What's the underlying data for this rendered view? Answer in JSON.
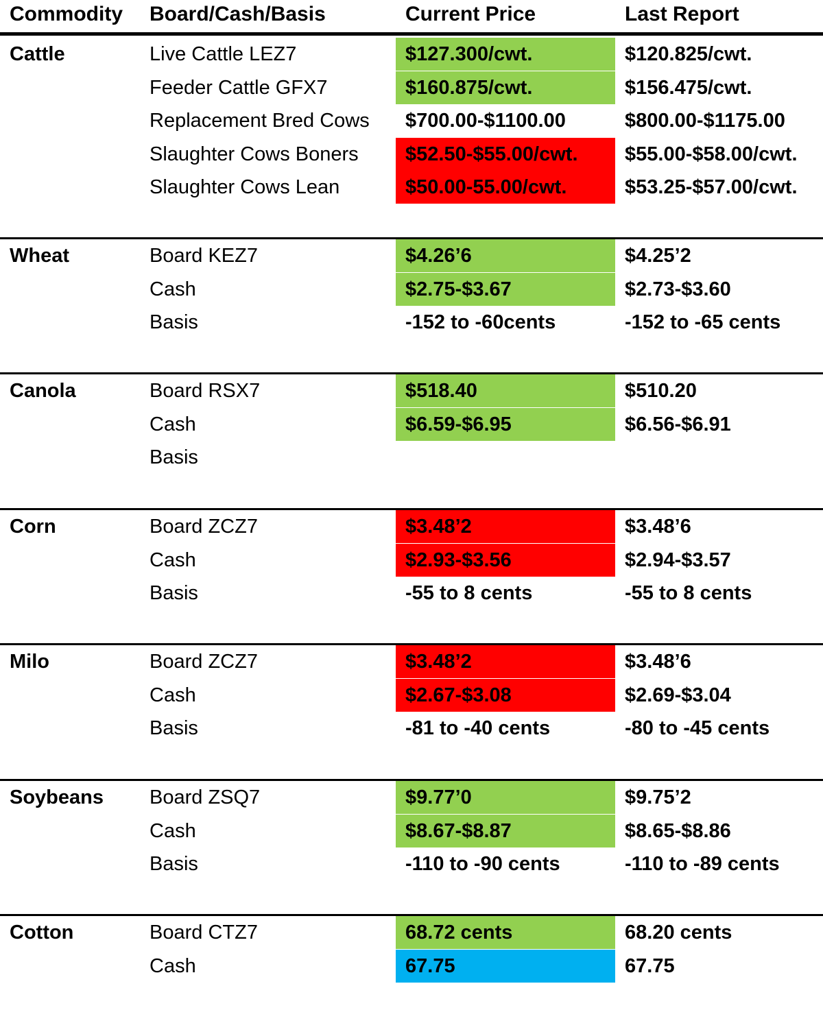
{
  "header": {
    "commodity": "Commodity",
    "type": "Board/Cash/Basis",
    "current": "Current Price",
    "last": "Last Report"
  },
  "colors": {
    "green": "#92d050",
    "red": "#ff0000",
    "blue": "#00b0f0"
  },
  "groups": [
    {
      "name": "Cattle",
      "rows": [
        {
          "label": "Live Cattle LEZ7",
          "current": "$127.300/cwt.",
          "last": "$120.825/cwt.",
          "highlight": "green"
        },
        {
          "label": "Feeder Cattle GFX7",
          "current": "$160.875/cwt.",
          "last": "$156.475/cwt.",
          "highlight": "green"
        },
        {
          "label": "Replacement Bred Cows",
          "current": "$700.00-$1100.00",
          "last": "$800.00-$1175.00",
          "highlight": "none"
        },
        {
          "label": "Slaughter Cows Boners",
          "current": "$52.50-$55.00/cwt.",
          "last": "$55.00-$58.00/cwt.",
          "highlight": "red"
        },
        {
          "label": "Slaughter Cows Lean",
          "current": "$50.00-55.00/cwt.",
          "last": "$53.25-$57.00/cwt.",
          "highlight": "red"
        }
      ]
    },
    {
      "name": "Wheat",
      "rows": [
        {
          "label": "Board KEZ7",
          "current": "$4.26’6",
          "last": "$4.25’2",
          "highlight": "green"
        },
        {
          "label": "Cash",
          "current": "$2.75-$3.67",
          "last": "$2.73-$3.60",
          "highlight": "green"
        },
        {
          "label": "Basis",
          "current": "-152 to -60cents",
          "last": "-152 to -65 cents",
          "highlight": "none"
        }
      ]
    },
    {
      "name": "Canola",
      "rows": [
        {
          "label": "Board RSX7",
          "current": "$518.40",
          "last": "$510.20",
          "highlight": "green"
        },
        {
          "label": "Cash",
          "current": "$6.59-$6.95",
          "last": "$6.56-$6.91",
          "highlight": "green"
        },
        {
          "label": "Basis",
          "current": "",
          "last": "",
          "highlight": "none"
        }
      ]
    },
    {
      "name": "Corn",
      "rows": [
        {
          "label": "Board ZCZ7",
          "current": "$3.48’2",
          "last": "$3.48’6",
          "highlight": "red"
        },
        {
          "label": "Cash",
          "current": "$2.93-$3.56",
          "last": "$2.94-$3.57",
          "highlight": "red"
        },
        {
          "label": "Basis",
          "current": "-55 to 8 cents",
          "last": "-55 to 8 cents",
          "highlight": "none"
        }
      ]
    },
    {
      "name": "Milo",
      "rows": [
        {
          "label": "Board ZCZ7",
          "current": "$3.48’2",
          "last": "$3.48’6",
          "highlight": "red"
        },
        {
          "label": "Cash",
          "current": "$2.67-$3.08",
          "last": "$2.69-$3.04",
          "highlight": "red"
        },
        {
          "label": "Basis",
          "current": "-81 to -40 cents",
          "last": "-80 to -45 cents",
          "highlight": "none"
        }
      ]
    },
    {
      "name": "Soybeans",
      "rows": [
        {
          "label": "Board ZSQ7",
          "current": "$9.77’0",
          "last": "$9.75’2",
          "highlight": "green"
        },
        {
          "label": "Cash",
          "current": "$8.67-$8.87",
          "last": "$8.65-$8.86",
          "highlight": "green"
        },
        {
          "label": "Basis",
          "current": "-110 to -90 cents",
          "last": "-110 to -89 cents",
          "highlight": "none"
        }
      ]
    },
    {
      "name": "Cotton",
      "rows": [
        {
          "label": "Board CTZ7",
          "current": "68.72 cents",
          "last": "68.20 cents",
          "highlight": "green"
        },
        {
          "label": "Cash",
          "current": "67.75",
          "last": "67.75",
          "highlight": "blue"
        }
      ]
    }
  ]
}
